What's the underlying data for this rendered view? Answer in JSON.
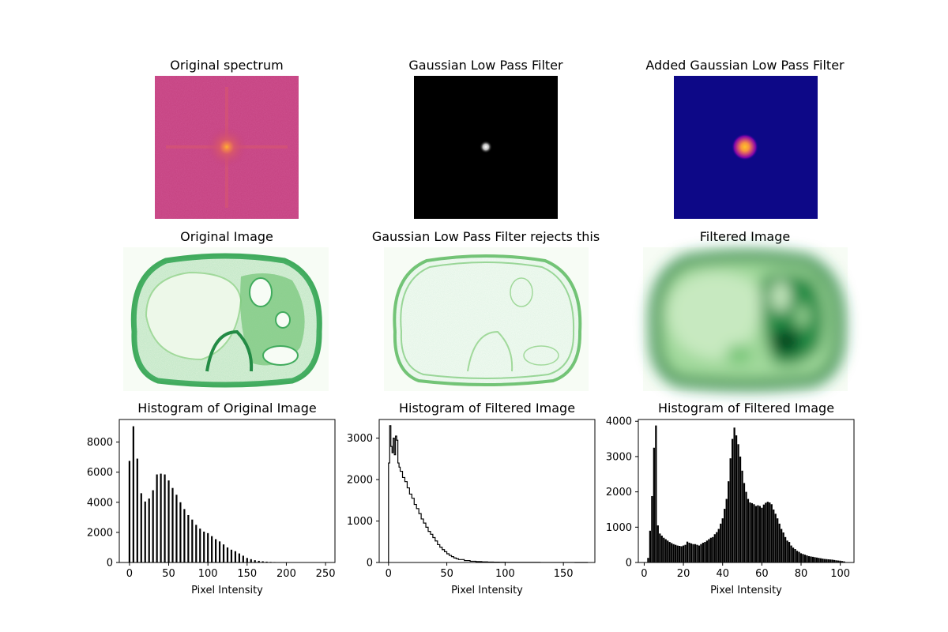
{
  "panels": {
    "spectrum_title": "Original spectrum",
    "glpf_title": "Gaussian Low Pass Filter",
    "added_title": "Added Gaussian Low Pass Filter",
    "orig_image_title": "Original Image",
    "rejected_title": "Gaussian Low Pass Filter rejects this",
    "filtered_image_title": "Filtered Image"
  },
  "colors": {
    "spectrum_bg": "#c4407f",
    "spectrum_hot": "#fdb32f",
    "filter_bg": "#000000",
    "added_bg": "#0d0887",
    "added_hot": "#f89540",
    "greens_dark": "#00441b",
    "greens_mid": "#41ab5d",
    "greens_light": "#f7fcf5",
    "hist_bar": "#000000"
  },
  "chart_data": [
    {
      "type": "bar",
      "title": "Histogram of Original Image",
      "xlabel": "Pixel Intensity",
      "ylabel": "",
      "xlim": [
        -13,
        262
      ],
      "ylim": [
        0,
        9500
      ],
      "xticks": [
        0,
        50,
        100,
        150,
        200,
        250
      ],
      "yticks": [
        0,
        2000,
        4000,
        6000,
        8000
      ],
      "bar_width": 2.2,
      "x": [
        0,
        5,
        10,
        15,
        20,
        25,
        30,
        35,
        40,
        45,
        50,
        55,
        60,
        65,
        70,
        75,
        80,
        85,
        90,
        95,
        100,
        105,
        110,
        115,
        120,
        125,
        130,
        135,
        140,
        145,
        150,
        155,
        160,
        165,
        170,
        175,
        180,
        185,
        190,
        195,
        200,
        205,
        210,
        215,
        220,
        225,
        230,
        235,
        240,
        245,
        250
      ],
      "values": [
        6750,
        9050,
        6900,
        4600,
        4050,
        4250,
        4800,
        5850,
        5900,
        5850,
        5450,
        4950,
        4500,
        4000,
        3550,
        3150,
        2850,
        2500,
        2250,
        2050,
        1950,
        1750,
        1550,
        1400,
        1200,
        1000,
        850,
        750,
        600,
        450,
        300,
        220,
        150,
        110,
        80,
        55,
        40,
        30,
        20,
        15,
        10,
        8,
        5,
        4,
        3,
        2,
        2,
        1,
        1,
        1,
        1
      ]
    },
    {
      "type": "line",
      "title": "Histogram of Filtered Image",
      "xlabel": "Pixel Intensity",
      "ylabel": "",
      "xlim": [
        -8,
        177
      ],
      "ylim": [
        0,
        3450
      ],
      "xticks": [
        0,
        50,
        100,
        150
      ],
      "yticks": [
        0,
        1000,
        2000,
        3000
      ],
      "x": [
        0,
        1,
        2,
        3,
        4,
        5,
        6,
        7,
        8,
        9,
        10,
        12,
        14,
        16,
        18,
        20,
        22,
        24,
        26,
        28,
        30,
        32,
        34,
        36,
        38,
        40,
        42,
        44,
        46,
        48,
        50,
        52,
        54,
        56,
        58,
        60,
        65,
        70,
        75,
        80,
        85,
        90,
        95,
        100,
        105,
        110,
        120,
        130,
        140,
        150,
        160,
        170
      ],
      "values": [
        2400,
        3300,
        2800,
        2650,
        3000,
        2600,
        3050,
        2950,
        2400,
        2300,
        2200,
        2050,
        1950,
        1800,
        1650,
        1550,
        1400,
        1300,
        1180,
        1050,
        950,
        850,
        750,
        680,
        600,
        520,
        430,
        370,
        310,
        260,
        210,
        170,
        140,
        110,
        90,
        70,
        45,
        30,
        22,
        15,
        10,
        8,
        5,
        4,
        3,
        2,
        2,
        1,
        1,
        1,
        0,
        0
      ]
    },
    {
      "type": "bar",
      "title": "Histogram of Filtered Image",
      "xlabel": "Pixel Intensity",
      "ylabel": "",
      "xlim": [
        -3,
        107
      ],
      "ylim": [
        0,
        4050
      ],
      "xticks": [
        0,
        20,
        40,
        60,
        80,
        100
      ],
      "yticks": [
        0,
        1000,
        2000,
        3000,
        4000
      ],
      "bar_width": 0.9,
      "x": [
        2,
        3,
        4,
        5,
        6,
        7,
        8,
        9,
        10,
        11,
        12,
        13,
        14,
        15,
        16,
        17,
        18,
        19,
        20,
        21,
        22,
        23,
        24,
        25,
        26,
        27,
        28,
        29,
        30,
        31,
        32,
        33,
        34,
        35,
        36,
        37,
        38,
        39,
        40,
        41,
        42,
        43,
        44,
        45,
        46,
        47,
        48,
        49,
        50,
        51,
        52,
        53,
        54,
        55,
        56,
        57,
        58,
        59,
        60,
        61,
        62,
        63,
        64,
        65,
        66,
        67,
        68,
        69,
        70,
        71,
        72,
        73,
        74,
        75,
        76,
        77,
        78,
        79,
        80,
        81,
        82,
        83,
        84,
        85,
        86,
        87,
        88,
        89,
        90,
        91,
        92,
        93,
        94,
        95,
        96,
        97,
        98,
        99,
        100,
        101,
        102
      ],
      "values": [
        130,
        900,
        1880,
        3250,
        3880,
        1050,
        820,
        760,
        700,
        660,
        620,
        580,
        550,
        520,
        500,
        480,
        470,
        460,
        480,
        500,
        590,
        560,
        540,
        520,
        520,
        500,
        480,
        520,
        560,
        580,
        620,
        660,
        700,
        720,
        800,
        860,
        950,
        1100,
        1250,
        1520,
        1800,
        2300,
        2950,
        3500,
        3820,
        3600,
        3350,
        3000,
        2600,
        2250,
        2000,
        1800,
        1700,
        1680,
        1650,
        1600,
        1620,
        1600,
        1550,
        1640,
        1690,
        1720,
        1700,
        1650,
        1500,
        1380,
        1250,
        1100,
        950,
        850,
        720,
        620,
        580,
        480,
        420,
        380,
        330,
        300,
        260,
        240,
        220,
        200,
        180,
        170,
        160,
        150,
        140,
        130,
        120,
        110,
        100,
        95,
        90,
        85,
        80,
        70,
        60,
        55,
        50,
        40,
        30
      ]
    }
  ]
}
